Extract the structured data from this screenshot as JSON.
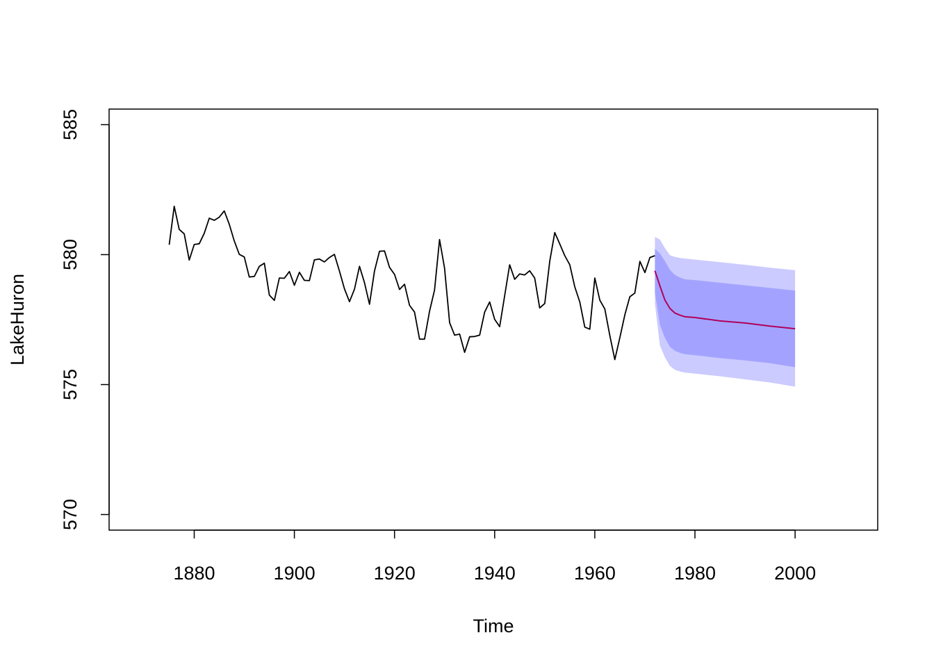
{
  "chart_data": {
    "type": "line",
    "title": "",
    "xlabel": "Time",
    "ylabel": "LakeHuron",
    "xlim": [
      1863,
      2016.5
    ],
    "ylim": [
      569.4,
      585.6
    ],
    "x_ticks": [
      1880,
      1900,
      1920,
      1940,
      1960,
      1980,
      2000
    ],
    "y_ticks": [
      570,
      575,
      580,
      585
    ],
    "grid": false,
    "legend": "none",
    "colors": {
      "observed": "#000000",
      "forecast": "#b0005b",
      "band_outer": "#cbcbff",
      "band_inner": "#a3a3ff"
    },
    "observed": {
      "start": 1875,
      "values": [
        580.38,
        581.86,
        580.97,
        580.8,
        579.79,
        580.39,
        580.42,
        580.82,
        581.4,
        581.32,
        581.44,
        581.68,
        581.17,
        580.53,
        580.01,
        579.91,
        579.14,
        579.16,
        579.55,
        579.67,
        578.44,
        578.24,
        579.1,
        579.09,
        579.35,
        578.82,
        579.32,
        579.01,
        579.0,
        579.8,
        579.83,
        579.72,
        579.89,
        580.01,
        579.37,
        578.69,
        578.19,
        578.67,
        579.55,
        578.92,
        578.09,
        579.37,
        580.13,
        580.14,
        579.51,
        579.24,
        578.66,
        578.86,
        578.05,
        577.79,
        576.75,
        576.75,
        577.82,
        578.64,
        580.58,
        579.48,
        577.38,
        576.9,
        576.94,
        576.24,
        576.84,
        576.85,
        576.9,
        577.79,
        578.18,
        577.51,
        577.23,
        578.42,
        579.61,
        579.05,
        579.26,
        579.22,
        579.38,
        579.1,
        577.95,
        578.12,
        579.75,
        580.85,
        580.41,
        579.96,
        579.61,
        578.76,
        578.18,
        577.21,
        577.13,
        579.1,
        578.25,
        577.91,
        576.89,
        575.96,
        576.8,
        577.68,
        578.38,
        578.52,
        579.74,
        579.31,
        579.89,
        579.96
      ]
    },
    "forecast": {
      "x": [
        1972,
        1973,
        1974,
        1975,
        1976,
        1977,
        1978,
        1980,
        1985,
        1990,
        1995,
        2000
      ],
      "mean": [
        579.38,
        578.8,
        578.25,
        577.93,
        577.75,
        577.67,
        577.61,
        577.58,
        577.45,
        577.37,
        577.25,
        577.15
      ],
      "lo80": [
        578.55,
        577.3,
        576.8,
        576.45,
        576.3,
        576.22,
        576.17,
        576.13,
        576.02,
        575.93,
        575.82,
        575.67
      ],
      "hi80": [
        580.22,
        580.05,
        579.75,
        579.42,
        579.22,
        579.12,
        579.05,
        579.02,
        578.92,
        578.82,
        578.72,
        578.62
      ],
      "lo95": [
        578.12,
        576.5,
        576.05,
        575.72,
        575.57,
        575.5,
        575.46,
        575.42,
        575.32,
        575.2,
        575.08,
        574.92
      ],
      "hi95": [
        580.68,
        580.58,
        580.25,
        579.98,
        579.91,
        579.87,
        579.85,
        579.81,
        579.71,
        579.61,
        579.5,
        579.4
      ]
    }
  }
}
